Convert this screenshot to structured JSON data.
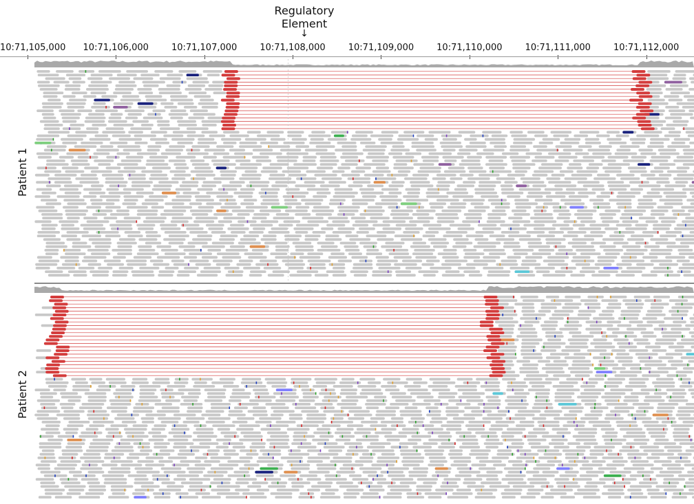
{
  "annotation": {
    "label_line1": "Regulatory",
    "label_line2": "Element",
    "arrow": "↓",
    "position_bp": 71107950
  },
  "axis": {
    "chromosome": "10",
    "ticks": [
      "10:71,105,000",
      "10:71,106,000",
      "10:71,107,000",
      "10:71,108,000",
      "10:71,109,000",
      "10:71,110,000",
      "10:71,111,000",
      "10:71,112,000"
    ],
    "tick_positions_bp": [
      71105000,
      71106000,
      71107000,
      71108000,
      71109000,
      71110000,
      71111000,
      71112000
    ],
    "view_start_bp": 71104690,
    "view_end_bp": 71112540
  },
  "tracks": [
    {
      "label": "Patient 1",
      "deletion": {
        "start_bp": 71107250,
        "end_bp": 71111970
      },
      "colors": {
        "read": "#c8c8c8",
        "split_read": "#d43c3c",
        "link_line": "#d43c3c"
      }
    },
    {
      "label": "Patient 2",
      "deletion": {
        "start_bp": 71105320,
        "end_bp": 71110280
      },
      "colors": {
        "read": "#c8c8c8",
        "split_read": "#d43c3c",
        "link_line": "#d43c3c"
      }
    }
  ],
  "colors": {
    "coverage": "#a9a9a9",
    "mismatch": [
      "#2aa02a",
      "#d62728",
      "#7b3fbf",
      "#1f3fbf",
      "#e0a030"
    ],
    "highlight_reads": [
      "#1a237e",
      "#5cc8d8",
      "#3cb050",
      "#8080ff",
      "#e09050",
      "#7fd07f",
      "#9060a0"
    ]
  }
}
